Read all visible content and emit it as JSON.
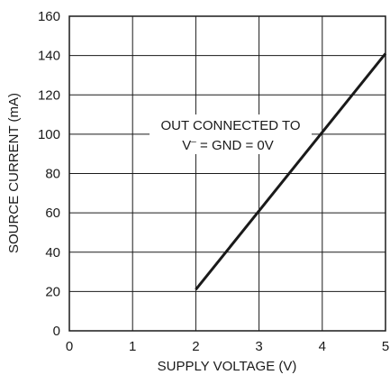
{
  "chart_data": {
    "type": "line",
    "title": "",
    "xlabel": "SUPPLY VOLTAGE (V)",
    "ylabel": "SOURCE CURRENT (mA)",
    "xlim": [
      0,
      5
    ],
    "ylim": [
      0,
      160
    ],
    "x_ticks": [
      0,
      1,
      2,
      3,
      4,
      5
    ],
    "y_ticks": [
      0,
      20,
      40,
      60,
      80,
      100,
      120,
      140,
      160
    ],
    "grid": true,
    "legend": "none",
    "series": [
      {
        "x": [
          2,
          5
        ],
        "values": [
          21,
          141
        ],
        "color": "#1a1a1a"
      }
    ],
    "annotations": [
      {
        "line1": "OUT CONNECTED TO",
        "line2_prefix": "V",
        "line2_sup": "–",
        "line2_rest": " = GND = 0V"
      }
    ]
  }
}
